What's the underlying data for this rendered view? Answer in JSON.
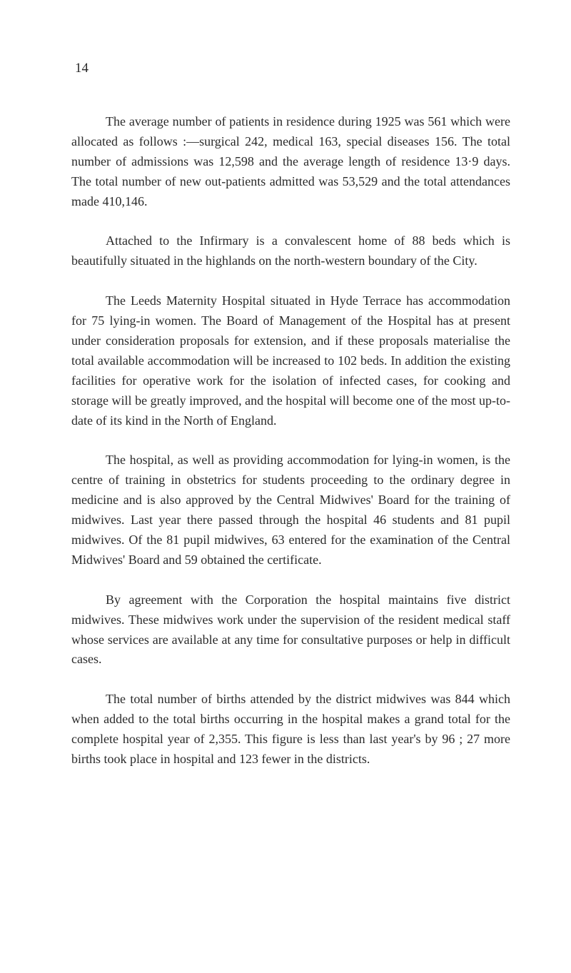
{
  "page_number": "14",
  "paragraphs": [
    "The average number of patients in residence during 1925 was 561 which were allocated as follows :—surgical 242, medical 163, special diseases 156. The total number of admissions was 12,598 and the average length of residence 13·9 days. The total number of new out-patients admitted was 53,529 and the total attendances made 410,146.",
    "Attached to the Infirmary is a convalescent home of 88 beds which is beautifully situated in the highlands on the north-western boundary of the City.",
    "The Leeds Maternity Hospital situated in Hyde Terrace has accommodation for 75 lying-in women. The Board of Management of the Hospital has at present under consideration proposals for extension, and if these proposals materialise the total available accommodation will be increased to 102 beds. In addition the existing facilities for operative work for the isolation of infected cases, for cooking and storage will be greatly improved, and the hospital will become one of the most up-to-date of its kind in the North of England.",
    "The hospital, as well as providing accommodation for lying-in women, is the centre of training in obstetrics for students proceeding to the ordinary degree in medicine and is also approved by the Central Midwives' Board for the training of midwives. Last year there passed through the hospital 46 students and 81 pupil midwives. Of the 81 pupil midwives, 63 entered for the examination of the Central Midwives' Board and 59 obtained the certificate.",
    "By agreement with the Corporation the hospital maintains five district midwives. These midwives work under the supervision of the resident medical staff whose services are available at any time for consultative purposes or help in difficult cases.",
    "The total number of births attended by the district midwives was 844 which when added to the total births occurring in the hospital makes a grand total for the complete hospital year of 2,355. This figure is less than last year's by 96 ; 27 more births took place in hospital and 123 fewer in the districts."
  ],
  "styling": {
    "background_color": "#ffffff",
    "text_color": "#2a2a2a",
    "font_family": "Georgia, Times New Roman, serif",
    "body_fontsize": 18,
    "page_number_fontsize": 19,
    "line_height": 1.55,
    "text_indent": 48,
    "paragraph_spacing": 28,
    "text_align": "justify"
  }
}
